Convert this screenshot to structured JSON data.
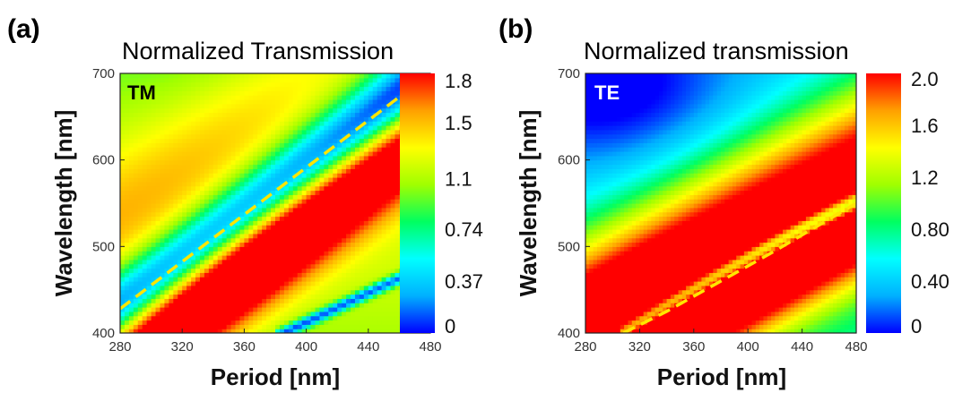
{
  "chart_data": [
    {
      "type": "heatmap",
      "panel": "(a)",
      "title": "Normalized Transmission",
      "mode_label": "TM",
      "xlabel": "Period [nm]",
      "ylabel": "Wavelength [nm]",
      "xlim": [
        280,
        480
      ],
      "ylim": [
        400,
        700
      ],
      "xticks": [
        "280",
        "320",
        "360",
        "400",
        "440",
        "480"
      ],
      "yticks": [
        "400",
        "500",
        "600",
        "700"
      ],
      "colorbar": {
        "range": [
          0,
          1.85
        ],
        "tick_values": [
          0,
          0.37,
          0.74,
          1.1,
          1.5,
          1.8
        ],
        "tick_labels": [
          "0",
          "0.37",
          "0.74",
          "1.1",
          "1.5",
          "1.8"
        ]
      },
      "colormap": [
        "#0000ff",
        "#00b0ff",
        "#00ffff",
        "#00ff60",
        "#a0ff00",
        "#ffff00",
        "#ffa000",
        "#ff0000"
      ],
      "dashed_line": {
        "color": "#ffe600",
        "points": [
          [
            280,
            428
          ],
          [
            480,
            700
          ]
        ]
      }
    },
    {
      "type": "heatmap",
      "panel": "(b)",
      "title": "Normalized transmission",
      "mode_label": "TE",
      "xlabel": "Period [nm]",
      "ylabel": "Wavelength [nm]",
      "xlim": [
        280,
        480
      ],
      "ylim": [
        400,
        700
      ],
      "xticks": [
        "280",
        "320",
        "360",
        "400",
        "440",
        "480"
      ],
      "yticks": [
        "400",
        "500",
        "600",
        "700"
      ],
      "colorbar": {
        "range": [
          0,
          2.0
        ],
        "tick_values": [
          0,
          0.4,
          0.8,
          1.2,
          1.6,
          2.0
        ],
        "tick_labels": [
          "0",
          "0.40",
          "0.80",
          "1.2",
          "1.6",
          "2.0"
        ]
      },
      "colormap": [
        "#0000ff",
        "#00b0ff",
        "#00ffff",
        "#00ff60",
        "#a0ff00",
        "#ffff00",
        "#ffa000",
        "#ff0000"
      ],
      "dashed_line": {
        "color": "#ffe600",
        "points": [
          [
            308,
            400
          ],
          [
            340,
            425
          ],
          [
            380,
            460
          ],
          [
            420,
            495
          ],
          [
            480,
            550
          ]
        ]
      }
    }
  ]
}
